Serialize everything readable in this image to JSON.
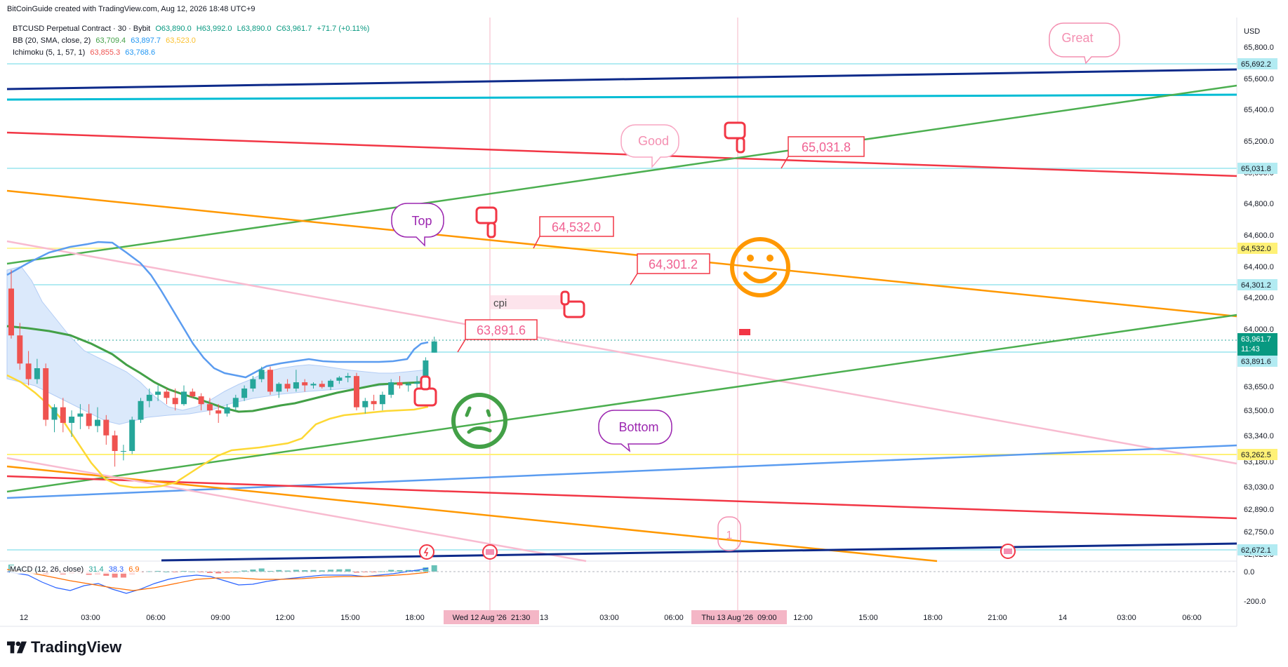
{
  "header": {
    "credit": "BitCoinGuide created with TradingView.com, Aug 12, 2026 18:48 UTC+9"
  },
  "legend": {
    "symbol": "BTCUSD Perpetual Contract · 30 · Bybit",
    "ohlc": {
      "o": "O63,890.0",
      "h": "H63,992.0",
      "l": "L63,890.0",
      "c": "C63,961.7",
      "chg": "+71.7 (+0.11%)"
    },
    "bb": {
      "name": "BB (20, SMA, close, 2)",
      "v1": "63,709.4",
      "v2": "63,897.7",
      "v3": "63,523.0"
    },
    "ichimoku": {
      "name": "Ichimoku (5, 1, 57, 1)",
      "v1": "63,855.3",
      "v2": "63,768.6"
    },
    "macd": {
      "name": "MACD (12, 26, close)",
      "v1": "31.4",
      "v2": "38.3",
      "v3": "6.9"
    }
  },
  "axis": {
    "currency": "USD",
    "price_ticks": [
      "65,800.0",
      "65,600.0",
      "65,400.0",
      "65,200.0",
      "65,000.0",
      "64,800.0",
      "64,600.0",
      "64,400.0",
      "64,200.0",
      "64,000.0",
      "63,650.0",
      "63,500.0",
      "63,340.0",
      "63,180.0",
      "63,030.0",
      "62,890.0",
      "62,750.0",
      "62,620.0"
    ],
    "macd_ticks": [
      "0.0",
      "-200.0"
    ],
    "time_ticks": [
      "12",
      "03:00",
      "06:00",
      "09:00",
      "12:00",
      "15:00",
      "18:00",
      "13",
      "03:00",
      "06:00",
      "12:00",
      "15:00",
      "18:00",
      "21:00",
      "14",
      "03:00",
      "06:00"
    ],
    "time_highlights": [
      "Wed 12 Aug '26  21:30",
      "Thu 13 Aug '26  09:00"
    ]
  },
  "price_labels": {
    "level_65692": "65,692.2",
    "level_65031": "65,031.8",
    "level_64532": "64,532.0",
    "level_64301": "64,301.2",
    "current_price": "63,961.7",
    "countdown": "11:43",
    "level_63891": "63,891.6",
    "level_63262": "63,262.5",
    "level_62672": "62,672.1"
  },
  "annotations": {
    "great": "Great",
    "good": "Good",
    "top": "Top",
    "bottom": "Bottom",
    "box_65031": "65,031.8",
    "box_64532": "64,532.0",
    "box_64301": "64,301.2",
    "box_63891": "63,891.6",
    "cpi": "cpi",
    "one": "1"
  },
  "colors": {
    "up": "#26a69a",
    "down": "#ef5350",
    "green_line": "#4caf50",
    "orange_line": "#ff9800",
    "red_line": "#f23645",
    "navy_line": "#0d2a8a",
    "cyan_line": "#00bcd4",
    "yellow_line": "#ffeb3b",
    "pink_line": "#f8bbd0",
    "blue_line": "#5b9cf0"
  },
  "brand": "TradingView",
  "chart_data": {
    "type": "candlestick",
    "symbol": "BTCUSD Perpetual Contract",
    "interval": "30",
    "exchange": "Bybit",
    "ylim": [
      62600,
      65950
    ],
    "candles": [
      {
        "o": 64300,
        "h": 64420,
        "l": 63980,
        "c": 64000
      },
      {
        "o": 64000,
        "h": 64080,
        "l": 63780,
        "c": 63820
      },
      {
        "o": 63820,
        "h": 63900,
        "l": 63680,
        "c": 63720
      },
      {
        "o": 63720,
        "h": 63850,
        "l": 63690,
        "c": 63790
      },
      {
        "o": 63790,
        "h": 63820,
        "l": 63420,
        "c": 63460
      },
      {
        "o": 63460,
        "h": 63560,
        "l": 63380,
        "c": 63540
      },
      {
        "o": 63540,
        "h": 63600,
        "l": 63380,
        "c": 63440
      },
      {
        "o": 63440,
        "h": 63520,
        "l": 63350,
        "c": 63480
      },
      {
        "o": 63480,
        "h": 63560,
        "l": 63400,
        "c": 63500
      },
      {
        "o": 63500,
        "h": 63560,
        "l": 63400,
        "c": 63420
      },
      {
        "o": 63420,
        "h": 63540,
        "l": 63380,
        "c": 63460
      },
      {
        "o": 63460,
        "h": 63490,
        "l": 63300,
        "c": 63360
      },
      {
        "o": 63360,
        "h": 63390,
        "l": 63160,
        "c": 63260
      },
      {
        "o": 63260,
        "h": 63300,
        "l": 63200,
        "c": 63260
      },
      {
        "o": 63260,
        "h": 63480,
        "l": 63240,
        "c": 63460
      },
      {
        "o": 63460,
        "h": 63600,
        "l": 63440,
        "c": 63580
      },
      {
        "o": 63580,
        "h": 63660,
        "l": 63540,
        "c": 63620
      },
      {
        "o": 63620,
        "h": 63680,
        "l": 63580,
        "c": 63640
      },
      {
        "o": 63640,
        "h": 63660,
        "l": 63560,
        "c": 63600
      },
      {
        "o": 63600,
        "h": 63660,
        "l": 63520,
        "c": 63560
      },
      {
        "o": 63560,
        "h": 63680,
        "l": 63550,
        "c": 63640
      },
      {
        "o": 63640,
        "h": 63660,
        "l": 63600,
        "c": 63610
      },
      {
        "o": 63610,
        "h": 63630,
        "l": 63520,
        "c": 63560
      },
      {
        "o": 63560,
        "h": 63600,
        "l": 63490,
        "c": 63520
      },
      {
        "o": 63520,
        "h": 63560,
        "l": 63440,
        "c": 63500
      },
      {
        "o": 63500,
        "h": 63560,
        "l": 63480,
        "c": 63540
      },
      {
        "o": 63540,
        "h": 63620,
        "l": 63520,
        "c": 63600
      },
      {
        "o": 63600,
        "h": 63680,
        "l": 63580,
        "c": 63660
      },
      {
        "o": 63660,
        "h": 63740,
        "l": 63640,
        "c": 63720
      },
      {
        "o": 63720,
        "h": 63800,
        "l": 63700,
        "c": 63780
      },
      {
        "o": 63780,
        "h": 63800,
        "l": 63620,
        "c": 63640
      },
      {
        "o": 63640,
        "h": 63700,
        "l": 63600,
        "c": 63690
      },
      {
        "o": 63690,
        "h": 63720,
        "l": 63640,
        "c": 63660
      },
      {
        "o": 63660,
        "h": 63780,
        "l": 63640,
        "c": 63700
      },
      {
        "o": 63700,
        "h": 63720,
        "l": 63640,
        "c": 63680
      },
      {
        "o": 63680,
        "h": 63700,
        "l": 63660,
        "c": 63690
      },
      {
        "o": 63690,
        "h": 63710,
        "l": 63660,
        "c": 63670
      },
      {
        "o": 63670,
        "h": 63720,
        "l": 63650,
        "c": 63710
      },
      {
        "o": 63710,
        "h": 63740,
        "l": 63690,
        "c": 63730
      },
      {
        "o": 63730,
        "h": 63760,
        "l": 63700,
        "c": 63740
      },
      {
        "o": 63740,
        "h": 63760,
        "l": 63520,
        "c": 63540
      },
      {
        "o": 63540,
        "h": 63600,
        "l": 63500,
        "c": 63580
      },
      {
        "o": 63580,
        "h": 63620,
        "l": 63520,
        "c": 63560
      },
      {
        "o": 63560,
        "h": 63640,
        "l": 63520,
        "c": 63620
      },
      {
        "o": 63620,
        "h": 63720,
        "l": 63600,
        "c": 63700
      },
      {
        "o": 63700,
        "h": 63740,
        "l": 63660,
        "c": 63680
      },
      {
        "o": 63680,
        "h": 63700,
        "l": 63640,
        "c": 63690
      },
      {
        "o": 63690,
        "h": 63740,
        "l": 63660,
        "c": 63700
      },
      {
        "o": 63700,
        "h": 63860,
        "l": 63690,
        "c": 63840
      },
      {
        "o": 63890,
        "h": 63992,
        "l": 63890,
        "c": 63961.7
      }
    ],
    "horizontal_levels": [
      65692.2,
      65031.8,
      64532.0,
      64301.2,
      63891.6,
      63262.5,
      62672.1
    ],
    "last_price": 63961.7
  }
}
